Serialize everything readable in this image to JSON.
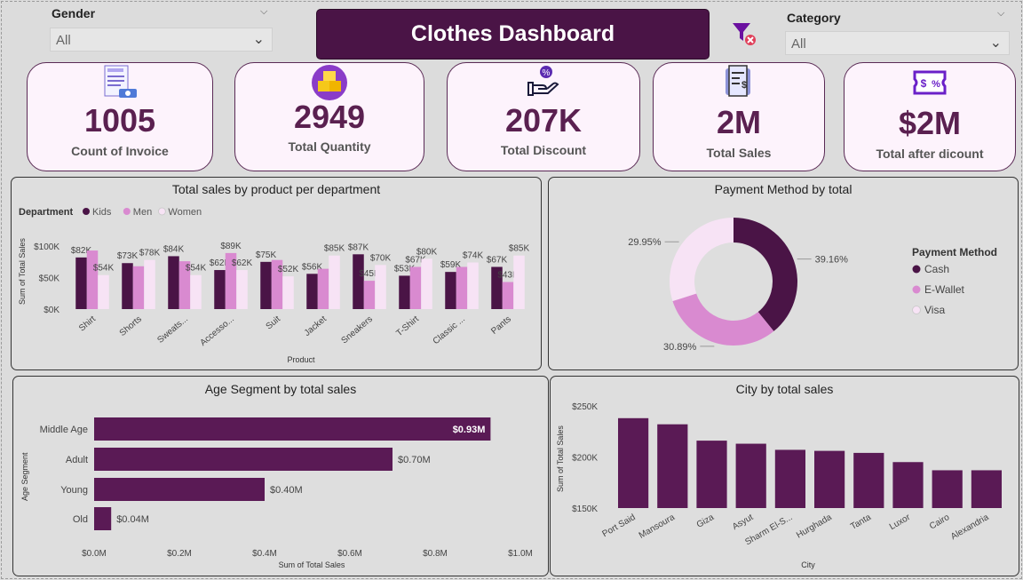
{
  "filters": {
    "gender": {
      "label": "Gender",
      "value": "All"
    },
    "category": {
      "label": "Category",
      "value": "All"
    }
  },
  "header": {
    "title": "Clothes Dashboard"
  },
  "kpis": [
    {
      "value": "1005",
      "label": "Count of Invoice",
      "icon": "invoice-icon"
    },
    {
      "value": "2949",
      "label": "Total Quantity",
      "icon": "boxes-icon"
    },
    {
      "value": "207K",
      "label": "Total Discount",
      "icon": "discount-hand-icon"
    },
    {
      "value": "2M",
      "label": "Total Sales",
      "icon": "receipt-icon"
    },
    {
      "value": "$2M",
      "label": "Total after dicount",
      "icon": "coupon-icon"
    }
  ],
  "colors": {
    "kids": "#4a1446",
    "men": "#d98ad0",
    "women": "#f7e3f5",
    "bar": "#5a1a55"
  },
  "charts": {
    "product": {
      "title": "Total sales by product per department",
      "legend_title": "Department",
      "ylabel": "Sum of Total Sales",
      "xlabel": "Product",
      "yticks": [
        "$100K",
        "$50K",
        "$0K"
      ]
    },
    "payment": {
      "title": "Payment Method by total",
      "legend_title": "Payment Method"
    },
    "age": {
      "title": "Age Segment by total sales",
      "ylabel": "Age Segment",
      "xlabel": "Sum of Total Sales",
      "xticks": [
        "$0.0M",
        "$0.2M",
        "$0.4M",
        "$0.6M",
        "$0.8M",
        "$1.0M"
      ]
    },
    "city": {
      "title": "City by total sales",
      "ylabel": "Sum of Total Sales",
      "xlabel": "City",
      "yticks": [
        "$250K",
        "$200K",
        "$150K"
      ]
    }
  },
  "chart_data": [
    {
      "type": "bar",
      "categories": [
        "Shirt",
        "Shorts",
        "Sweats...",
        "Accesso...",
        "Suit",
        "Jacket",
        "Sneakers",
        "T-Shirt",
        "Classic ...",
        "Pants"
      ],
      "series": [
        {
          "name": "Kids",
          "values": [
            82,
            73,
            84,
            62,
            75,
            56,
            87,
            53,
            59,
            67
          ],
          "labels": [
            "$82K",
            "$73K",
            "$84K",
            "$62K",
            "$75K",
            "$56K",
            "$87K",
            "$53K",
            "$59K",
            "$67K"
          ]
        },
        {
          "name": "Men",
          "values": [
            93,
            68,
            76,
            89,
            78,
            64,
            45,
            67,
            67,
            43
          ],
          "labels": [
            "",
            "",
            "",
            "$89K",
            "",
            "",
            "$45K",
            "$67K",
            "",
            "$43K"
          ]
        },
        {
          "name": "Women",
          "values": [
            54,
            78,
            54,
            62,
            52,
            85,
            70,
            80,
            74,
            85
          ],
          "labels": [
            "$54K",
            "$78K",
            "$54K",
            "$62K",
            "$52K",
            "$85K",
            "$70K",
            "$80K",
            "$74K",
            "$85K"
          ]
        }
      ],
      "ylim": [
        0,
        110
      ]
    },
    {
      "type": "pie",
      "categories": [
        "Cash",
        "E-Wallet",
        "Visa"
      ],
      "values": [
        39.16,
        30.89,
        29.95
      ],
      "labels": [
        "39.16%",
        "30.89%",
        "29.95%"
      ]
    },
    {
      "type": "bar",
      "categories": [
        "Middle Age",
        "Adult",
        "Young",
        "Old"
      ],
      "values": [
        0.93,
        0.7,
        0.4,
        0.04
      ],
      "labels": [
        "$0.93M",
        "$0.70M",
        "$0.40M",
        "$0.04M"
      ],
      "xlim": [
        0,
        1.0
      ]
    },
    {
      "type": "bar",
      "categories": [
        "Port Said",
        "Mansoura",
        "Giza",
        "Asyut",
        "Sharm El-S...",
        "Hurghada",
        "Tanta",
        "Luxor",
        "Cairo",
        "Alexandria"
      ],
      "values": [
        238,
        232,
        216,
        213,
        207,
        206,
        204,
        195,
        187,
        187
      ],
      "ylim": [
        150,
        250
      ]
    }
  ]
}
